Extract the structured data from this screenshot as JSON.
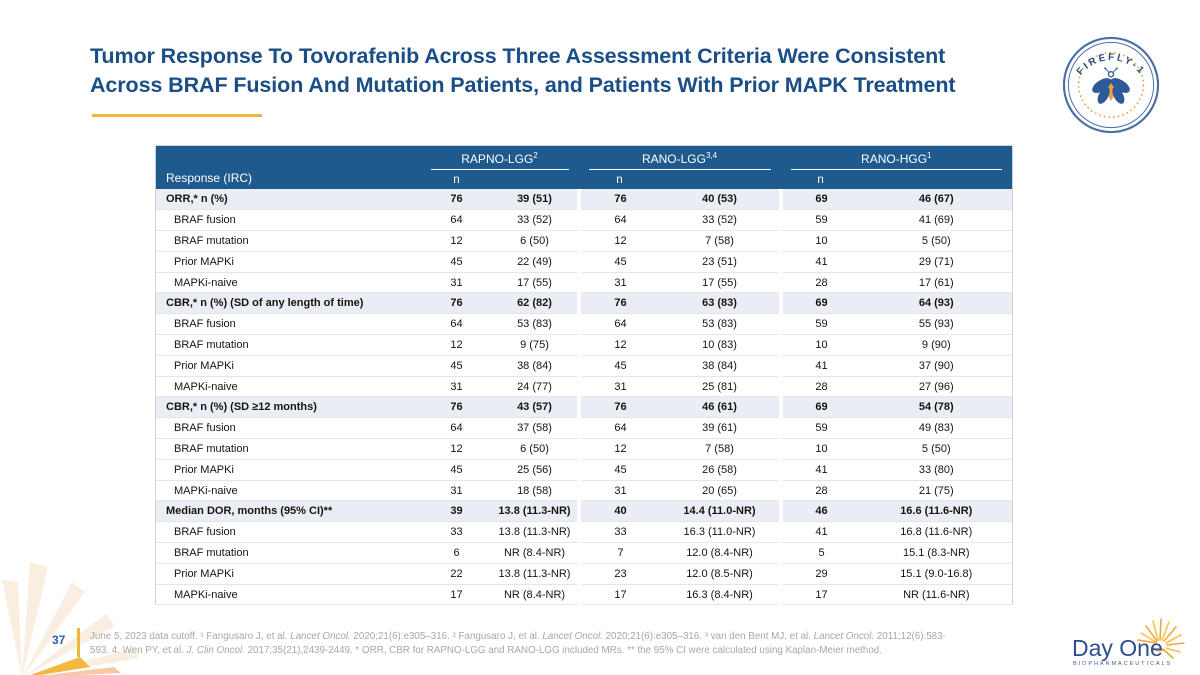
{
  "slide": {
    "title_line1": "Tumor Response To Tovorafenib Across Three Assessment Criteria Were Consistent",
    "title_line2": "Across BRAF Fusion And Mutation Patients, and Patients With Prior MAPK Treatment",
    "page_number": "37",
    "footnote_segments": [
      {
        "t": "June 5, 2023 data cutoff. ¹ Fangusaro J, et al. ",
        "i": false
      },
      {
        "t": "Lancet Oncol.",
        "i": true
      },
      {
        "t": " 2020;21(6):e305–316. ² Fangusaro J, et al. ",
        "i": false
      },
      {
        "t": "Lancet Oncol.",
        "i": true
      },
      {
        "t": " 2020;21(6):e305–316. ³ van den Bent MJ, et al. ",
        "i": false
      },
      {
        "t": "Lancet Oncol.",
        "i": true
      },
      {
        "t": " 2011;12(6):583-593. 4. Wen PY, et al. ",
        "i": false
      },
      {
        "t": "J. Clin Oncol.",
        "i": true
      },
      {
        "t": " 2017;35(21),2439-2449. * ORR, CBR for RAPNO-LGG and RANO-LGG included MRs. ** the 95% CI were calculated using Kaplan-Meier method.",
        "i": false
      }
    ]
  },
  "badge": {
    "label": "FIREFLY-1",
    "icon": "firefly-icon"
  },
  "logo": {
    "name": "Day One",
    "subtitle": "BIOPHARMACEUTICALS",
    "icon": "sunburst-icon"
  },
  "decorations": {
    "corner_icon": "sunburst-rays-icon"
  },
  "table": {
    "row_header_label": "Response (IRC)",
    "groups": [
      {
        "label": "RAPNO-LGG",
        "sup": "2",
        "n_label": "n"
      },
      {
        "label": "RANO-LGG",
        "sup": "3,4",
        "n_label": "n"
      },
      {
        "label": "RANO-HGG",
        "sup": "1",
        "n_label": "n"
      }
    ],
    "rows": [
      {
        "label": "ORR,* n (%)",
        "section": true,
        "cells": [
          "76",
          "39 (51)",
          "76",
          "40 (53)",
          "69",
          "46 (67)"
        ]
      },
      {
        "label": "BRAF fusion",
        "section": false,
        "cells": [
          "64",
          "33 (52)",
          "64",
          "33 (52)",
          "59",
          "41 (69)"
        ]
      },
      {
        "label": "BRAF mutation",
        "section": false,
        "cells": [
          "12",
          "6 (50)",
          "12",
          "7 (58)",
          "10",
          "5 (50)"
        ]
      },
      {
        "label": "Prior MAPKi",
        "section": false,
        "cells": [
          "45",
          "22 (49)",
          "45",
          "23 (51)",
          "41",
          "29 (71)"
        ]
      },
      {
        "label": "MAPKi-naive",
        "section": false,
        "cells": [
          "31",
          "17 (55)",
          "31",
          "17 (55)",
          "28",
          "17 (61)"
        ]
      },
      {
        "label": "CBR,* n (%) (SD of any length of time)",
        "section": true,
        "cells": [
          "76",
          "62 (82)",
          "76",
          "63 (83)",
          "69",
          "64 (93)"
        ]
      },
      {
        "label": "BRAF fusion",
        "section": false,
        "cells": [
          "64",
          "53 (83)",
          "64",
          "53 (83)",
          "59",
          "55 (93)"
        ]
      },
      {
        "label": "BRAF mutation",
        "section": false,
        "cells": [
          "12",
          "9 (75)",
          "12",
          "10 (83)",
          "10",
          "9 (90)"
        ]
      },
      {
        "label": "Prior MAPKi",
        "section": false,
        "cells": [
          "45",
          "38 (84)",
          "45",
          "38 (84)",
          "41",
          "37 (90)"
        ]
      },
      {
        "label": "MAPKi-naive",
        "section": false,
        "cells": [
          "31",
          "24 (77)",
          "31",
          "25 (81)",
          "28",
          "27 (96)"
        ]
      },
      {
        "label": "CBR,* n (%) (SD ≥12 months)",
        "section": true,
        "cells": [
          "76",
          "43 (57)",
          "76",
          "46 (61)",
          "69",
          "54 (78)"
        ]
      },
      {
        "label": "BRAF fusion",
        "section": false,
        "cells": [
          "64",
          "37 (58)",
          "64",
          "39 (61)",
          "59",
          "49 (83)"
        ]
      },
      {
        "label": "BRAF mutation",
        "section": false,
        "cells": [
          "12",
          "6 (50)",
          "12",
          "7 (58)",
          "10",
          "5 (50)"
        ]
      },
      {
        "label": "Prior MAPKi",
        "section": false,
        "cells": [
          "45",
          "25 (56)",
          "45",
          "26 (58)",
          "41",
          "33 (80)"
        ]
      },
      {
        "label": "MAPKi-naive",
        "section": false,
        "cells": [
          "31",
          "18 (58)",
          "31",
          "20 (65)",
          "28",
          "21 (75)"
        ]
      },
      {
        "label": "Median DOR, months (95% CI)**",
        "section": true,
        "cells": [
          "39",
          "13.8 (11.3-NR)",
          "40",
          "14.4 (11.0-NR)",
          "46",
          "16.6 (11.6-NR)"
        ]
      },
      {
        "label": "BRAF fusion",
        "section": false,
        "cells": [
          "33",
          "13.8 (11.3-NR)",
          "33",
          "16.3 (11.0-NR)",
          "41",
          "16.8 (11.6-NR)"
        ]
      },
      {
        "label": "BRAF mutation",
        "section": false,
        "cells": [
          "6",
          "NR (8.4-NR)",
          "7",
          "12.0 (8.4-NR)",
          "5",
          "15.1 (8.3-NR)"
        ]
      },
      {
        "label": "Prior MAPKi",
        "section": false,
        "cells": [
          "22",
          "13.8 (11.3-NR)",
          "23",
          "12.0 (8.5-NR)",
          "29",
          "15.1 (9.0-16.8)"
        ]
      },
      {
        "label": "MAPKi-naive",
        "section": false,
        "cells": [
          "17",
          "NR (8.4-NR)",
          "17",
          "16.3 (8.4-NR)",
          "17",
          "NR (11.6-NR)"
        ]
      }
    ]
  },
  "colors": {
    "title_blue": "#1B4E87",
    "header_blue": "#1F5A8E",
    "section_row_bg": "#EAEEF4",
    "accent_gold": "#EDB63D",
    "footnote_gray": "#A7A7A7",
    "logo_blue": "#2C4D8E",
    "ray_orange": "#F2A73B",
    "pale_ray": "#FAEEE1"
  }
}
